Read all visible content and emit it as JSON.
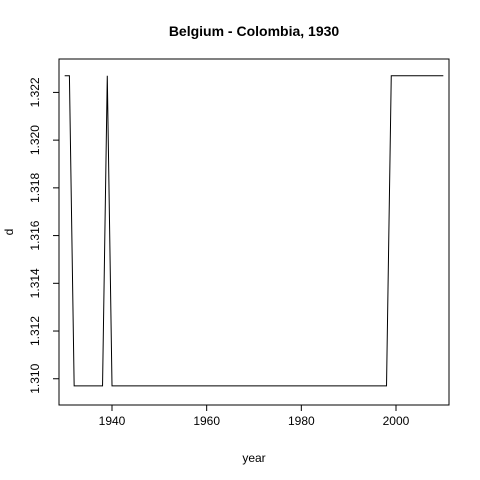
{
  "chart_data": {
    "type": "line",
    "title": "Belgium - Colombia, 1930",
    "xlabel": "year",
    "ylabel": "d",
    "xlim": [
      1928.8,
      2011.2
    ],
    "ylim": [
      1.3089,
      1.3234
    ],
    "x_ticks": [
      1940,
      1960,
      1980,
      2000
    ],
    "y_ticks": [
      1.31,
      1.312,
      1.314,
      1.316,
      1.318,
      1.32,
      1.322
    ],
    "y_tick_labels": [
      "1.310",
      "1.312",
      "1.314",
      "1.316",
      "1.318",
      "1.320",
      "1.322"
    ],
    "grid": false,
    "legend": "none",
    "line_color": "#000000",
    "series": [
      {
        "x": [
          1930,
          1931,
          1932,
          1933,
          1934,
          1935,
          1936,
          1937,
          1938,
          1939,
          1940,
          1941,
          1950,
          1960,
          1970,
          1980,
          1990,
          1997,
          1998,
          1999,
          2000,
          2005,
          2010
        ],
        "y": [
          1.3227,
          1.3227,
          1.3097,
          1.3097,
          1.3097,
          1.3097,
          1.3097,
          1.3097,
          1.3097,
          1.3227,
          1.3097,
          1.3097,
          1.3097,
          1.3097,
          1.3097,
          1.3097,
          1.3097,
          1.3097,
          1.3097,
          1.3227,
          1.3227,
          1.3227,
          1.3227
        ]
      }
    ]
  }
}
